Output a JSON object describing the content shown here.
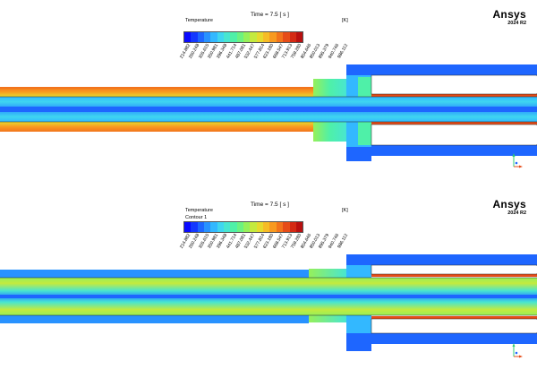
{
  "colors": {
    "accent": "#2ecc71",
    "background": "#ffffff",
    "colormap": [
      "#0a0aff",
      "#1438ff",
      "#1e66ff",
      "#2892ff",
      "#33b8ff",
      "#3fd6f0",
      "#48e6d0",
      "#4ff0a8",
      "#6cf280",
      "#96f05a",
      "#c4ea3e",
      "#e6da2e",
      "#f6bc26",
      "#f89a20",
      "#f2741c",
      "#e64c18",
      "#d42a14",
      "#b81010"
    ]
  },
  "scale": {
    "ticks": [
      "214.882",
      "260.248",
      "305.615",
      "350.981",
      "396.348",
      "441.714",
      "487.081",
      "532.447",
      "577.814",
      "623.180",
      "668.547",
      "713.913",
      "759.280",
      "804.646",
      "850.013",
      "895.379",
      "940.746",
      "986.112"
    ],
    "unit": "[K]",
    "min": 214.882,
    "max": 986.112
  },
  "views": [
    {
      "time": "Time = 7.5 [ s ]",
      "variable": "Temperature",
      "subtitle": "",
      "logo": "Ansys",
      "version": "2024 R2"
    },
    {
      "time": "Time = 7.5 [ s ]",
      "variable": "Temperature",
      "subtitle": "Contour 1",
      "logo": "Ansys",
      "version": "2024 R2"
    }
  ],
  "axis_icon": [
    "y-axis-icon",
    "x-axis-icon",
    "z-axis-icon"
  ]
}
